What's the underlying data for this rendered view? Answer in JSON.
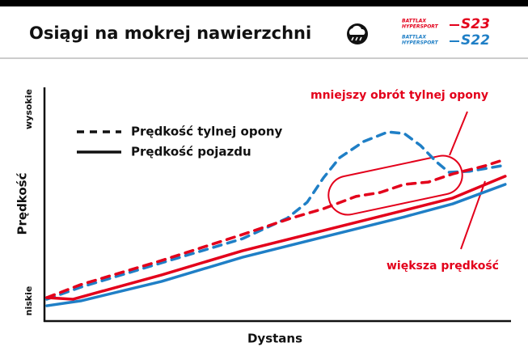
{
  "chart_data": {
    "type": "line",
    "title": "Osiągi na mokrej nawierzchni",
    "logos": [
      {
        "brand": "BATTLAX",
        "line": "HYPERSPORT",
        "model": "S23",
        "color": "#e3001b"
      },
      {
        "brand": "BATTLAX",
        "line": "HYPERSPORT",
        "model": "S22",
        "color": "#1f7fc6"
      }
    ],
    "x_label": "Dystans",
    "y_label": "Prędkość",
    "y_high_label": "wysokie",
    "y_low_label": "niskie",
    "legend": [
      {
        "label": "Prędkość tylnej opony",
        "dashed": true
      },
      {
        "label": "Prędkość pojazdu",
        "dashed": false
      }
    ],
    "annotations": [
      "mniejszy obrót tylnej opony",
      "większa prędkość"
    ],
    "xlim": [
      0,
      100
    ],
    "ylim": [
      0,
      100
    ],
    "series": [
      {
        "color": "#1f7fc6",
        "dashed": true,
        "x": [
          0.5,
          7.8,
          25.2,
          42.6,
          52.2,
          56.5,
          60,
          63.5,
          68.7,
          73.9,
          77.4,
          80.9,
          84.3,
          87,
          91.3,
          98.3
        ],
        "values": [
          9.4,
          14.6,
          25.1,
          35.5,
          44.3,
          51.2,
          61.7,
          70.4,
          77.4,
          81.5,
          80.8,
          75.6,
          68.6,
          64.1,
          64.5,
          66.9
        ]
      },
      {
        "color": "#1f7fc6",
        "dashed": false,
        "x": [
          0.5,
          7.8,
          25.2,
          42.6,
          60,
          77.4,
          87.8,
          99.1
        ],
        "values": [
          6.6,
          8.7,
          17.1,
          27.5,
          36.2,
          44.9,
          50.5,
          58.9
        ]
      },
      {
        "color": "#e3001b",
        "dashed": false,
        "x": [
          0.5,
          6.1,
          25.2,
          42.6,
          60,
          77.4,
          87.8,
          99.1
        ],
        "values": [
          10.1,
          9.4,
          19.9,
          30.3,
          39,
          47.7,
          53,
          62.4
        ]
      },
      {
        "color": "#e3001b",
        "dashed": true,
        "x": [
          0.5,
          7.8,
          25.2,
          42.6,
          53,
          60,
          67,
          72.2,
          77.4,
          82.6,
          87.8,
          94.8,
          99.1
        ],
        "values": [
          10.1,
          15.7,
          26.1,
          37.3,
          44.3,
          48.4,
          53.7,
          55.4,
          58.9,
          59.9,
          63.4,
          66.9,
          69.7
        ]
      }
    ]
  }
}
